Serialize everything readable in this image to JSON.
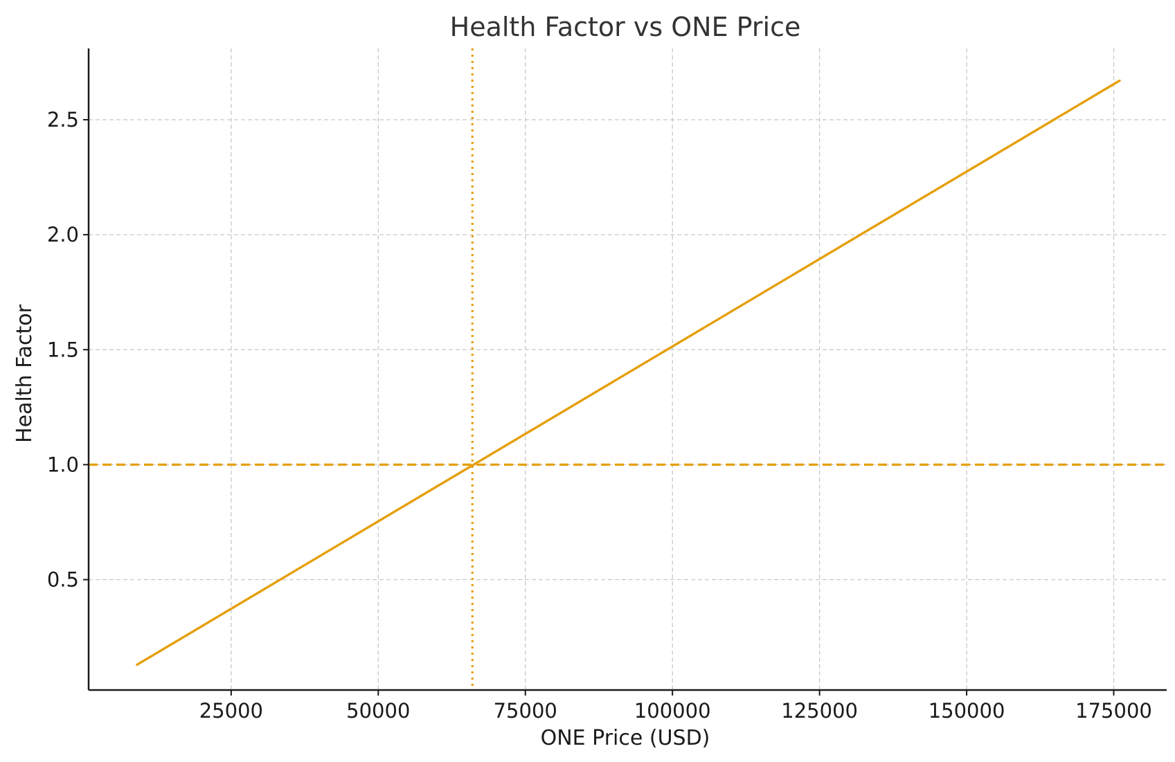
{
  "chart_data": {
    "type": "line",
    "title": "Health Factor vs ONE Price",
    "xlabel": "ONE Price (USD)",
    "ylabel": "Health Factor",
    "xlim": [
      775,
      184000
    ],
    "ylim": [
      0.02,
      2.81
    ],
    "x_ticks": [
      25000,
      50000,
      75000,
      100000,
      125000,
      150000,
      175000
    ],
    "x_tick_labels": [
      "25000",
      "50000",
      "75000",
      "100000",
      "125000",
      "150000",
      "175000"
    ],
    "y_ticks": [
      0.5,
      1.0,
      1.5,
      2.0,
      2.5
    ],
    "y_tick_labels": [
      "0.5",
      "1.0",
      "1.5",
      "2.0",
      "2.5"
    ],
    "grid": true,
    "series": [
      {
        "color": "#e59f0c",
        "style": "solid",
        "x": [
          9000,
          176000
        ],
        "y": [
          0.13,
          2.67
        ]
      }
    ],
    "reference_lines": [
      {
        "orientation": "horizontal",
        "value": 1.0,
        "style": "dashed",
        "color": "#e59f0c"
      },
      {
        "orientation": "vertical",
        "value": 66000,
        "style": "dotted",
        "color": "#e59f0c"
      }
    ]
  }
}
